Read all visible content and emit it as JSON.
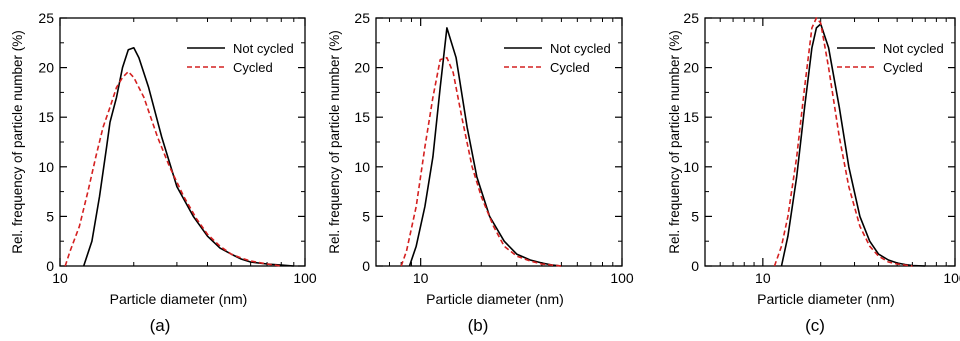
{
  "figure": {
    "panels": [
      {
        "label": "(a)"
      },
      {
        "label": "(b)"
      },
      {
        "label": "(c)"
      }
    ]
  },
  "colors": {
    "not_cycled": "#000000",
    "cycled": "#d42020",
    "axis": "#000000"
  },
  "chart_data": [
    {
      "type": "line",
      "panel_label": "(a)",
      "xlabel": "Particle diameter (nm)",
      "ylabel": "Rel. frequency of particle number (%)",
      "xscale": "log",
      "xlim": [
        10,
        100
      ],
      "ylim": [
        0,
        25
      ],
      "xticks": [
        10,
        100
      ],
      "yticks": [
        0,
        5,
        10,
        15,
        20,
        25
      ],
      "legend": "top-right",
      "grid": false,
      "series": [
        {
          "name": "Not cycled",
          "style": "solid",
          "color": "#000000",
          "x": [
            12.5,
            13.5,
            14.5,
            15.5,
            16,
            17,
            18,
            19,
            20,
            21,
            23,
            26,
            30,
            35,
            40,
            45,
            50,
            55,
            60,
            70,
            80,
            90
          ],
          "y": [
            0,
            2.5,
            7,
            12,
            14.5,
            17,
            20,
            21.8,
            22,
            21,
            18,
            13,
            8,
            5,
            3,
            1.8,
            1.2,
            0.7,
            0.4,
            0.2,
            0.1,
            0
          ]
        },
        {
          "name": "Cycled",
          "style": "dashed",
          "color": "#d42020",
          "x": [
            10.5,
            11,
            12,
            13,
            14,
            15,
            16,
            17,
            18,
            19,
            20,
            22,
            25,
            28,
            32,
            36,
            40,
            45,
            50,
            55,
            60,
            70,
            80
          ],
          "y": [
            0,
            1.5,
            4,
            7.5,
            11,
            14,
            16,
            18,
            19,
            19.6,
            19,
            17,
            13,
            10,
            7,
            4.8,
            3.2,
            2,
            1.2,
            0.8,
            0.5,
            0.2,
            0
          ]
        }
      ]
    },
    {
      "type": "line",
      "panel_label": "(b)",
      "xlabel": "Particle diameter (nm)",
      "ylabel": "Rel. frequency of particle number (%)",
      "xscale": "log",
      "xlim": [
        6,
        100
      ],
      "ylim": [
        0,
        25
      ],
      "xticks": [
        10,
        100
      ],
      "yticks": [
        0,
        5,
        10,
        15,
        20,
        25
      ],
      "legend": "top-right",
      "grid": false,
      "series": [
        {
          "name": "Not cycled",
          "style": "solid",
          "color": "#000000",
          "x": [
            8.8,
            9.5,
            10.5,
            11.5,
            12.5,
            13.5,
            15,
            17,
            19,
            22,
            26,
            30,
            35,
            40,
            45,
            50
          ],
          "y": [
            0,
            2,
            6,
            11,
            18,
            24,
            21,
            14,
            9,
            5,
            2.5,
            1.2,
            0.6,
            0.3,
            0.1,
            0
          ]
        },
        {
          "name": "Cycled",
          "style": "dashed",
          "color": "#d42020",
          "x": [
            8,
            8.5,
            9.5,
            10.5,
            11.5,
            12.5,
            13.5,
            14.5,
            16,
            18,
            20,
            23,
            26,
            30,
            35,
            40,
            50
          ],
          "y": [
            0,
            1.5,
            6,
            12,
            17,
            20.8,
            21,
            19.5,
            15,
            10,
            7,
            4,
            2,
            1,
            0.5,
            0.2,
            0
          ]
        }
      ]
    },
    {
      "type": "line",
      "panel_label": "(c)",
      "xlabel": "Particle diameter (nm)",
      "ylabel": "Rel. frequency of particle number (%)",
      "xscale": "log",
      "xlim": [
        5,
        100
      ],
      "ylim": [
        0,
        25
      ],
      "xticks": [
        10,
        100
      ],
      "yticks": [
        0,
        5,
        10,
        15,
        20,
        25
      ],
      "legend": "top-right",
      "grid": false,
      "series": [
        {
          "name": "Not cycled",
          "style": "solid",
          "color": "#000000",
          "x": [
            12.5,
            13.5,
            15,
            16.5,
            18,
            19,
            20,
            22,
            25,
            28,
            32,
            36,
            40,
            45,
            50,
            55,
            60,
            70
          ],
          "y": [
            0,
            3,
            9,
            16,
            22,
            24,
            24.4,
            22,
            16,
            10,
            5,
            2.5,
            1.2,
            0.6,
            0.3,
            0.15,
            0.05,
            0
          ]
        },
        {
          "name": "Cycled",
          "style": "dashed",
          "color": "#d42020",
          "x": [
            11.5,
            12.5,
            13.5,
            15,
            16.5,
            18,
            19,
            20,
            22,
            25,
            28,
            32,
            36,
            40,
            45,
            50,
            60
          ],
          "y": [
            0,
            2,
            5,
            11,
            18,
            24,
            25,
            24.5,
            20,
            13,
            8,
            4,
            2,
            1,
            0.4,
            0.2,
            0
          ]
        }
      ]
    }
  ]
}
